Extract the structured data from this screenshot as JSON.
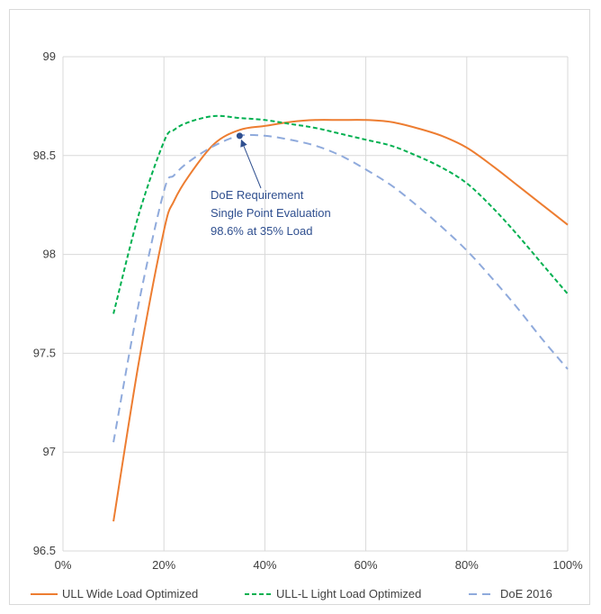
{
  "chart_data": {
    "type": "line",
    "title": "",
    "xlabel": "",
    "ylabel": "",
    "xlim": [
      0,
      100
    ],
    "ylim": [
      96.5,
      99
    ],
    "x_ticks": [
      "0%",
      "20%",
      "40%",
      "60%",
      "80%",
      "100%"
    ],
    "y_ticks": [
      "96.5",
      "97",
      "97.5",
      "98",
      "98.5",
      "99"
    ],
    "grid": "vertical and horizontal",
    "legend_position": "bottom",
    "series": [
      {
        "name": "ULL Wide Load Optimized",
        "color": "#ed7d31",
        "style": "solid",
        "x": [
          10,
          15,
          20,
          22,
          25,
          30,
          35,
          40,
          45,
          50,
          55,
          60,
          65,
          70,
          75,
          80,
          85,
          90,
          95,
          100
        ],
        "values": [
          96.65,
          97.45,
          98.12,
          98.27,
          98.4,
          98.56,
          98.63,
          98.65,
          98.67,
          98.68,
          98.68,
          98.68,
          98.67,
          98.64,
          98.6,
          98.54,
          98.45,
          98.35,
          98.25,
          98.15
        ]
      },
      {
        "name": "ULL-L Light Load Optimized",
        "color": "#00b050",
        "style": "dash",
        "x": [
          10,
          15,
          20,
          22,
          25,
          30,
          35,
          40,
          45,
          50,
          55,
          60,
          65,
          70,
          75,
          80,
          85,
          90,
          95,
          100
        ],
        "values": [
          97.7,
          98.2,
          98.57,
          98.63,
          98.67,
          98.7,
          98.69,
          98.68,
          98.66,
          98.64,
          98.61,
          98.58,
          98.55,
          98.5,
          98.44,
          98.36,
          98.24,
          98.1,
          97.95,
          97.8
        ]
      },
      {
        "name": "DoE 2016",
        "color": "#8faadc",
        "style": "longdash",
        "x": [
          10,
          15,
          20,
          22,
          25,
          30,
          35,
          40,
          45,
          50,
          55,
          60,
          65,
          70,
          75,
          80,
          85,
          90,
          95,
          100
        ],
        "values": [
          97.05,
          97.75,
          98.32,
          98.4,
          98.47,
          98.55,
          98.6,
          98.6,
          98.58,
          98.55,
          98.5,
          98.43,
          98.35,
          98.25,
          98.14,
          98.02,
          97.88,
          97.73,
          97.57,
          97.42
        ]
      }
    ],
    "annotation": {
      "point": {
        "x": 35,
        "y": 98.6
      },
      "point_color": "#2f4f8f",
      "lines": [
        "DoE Requirement",
        "Single Point Evaluation",
        "98.6% at 35% Load"
      ]
    }
  }
}
